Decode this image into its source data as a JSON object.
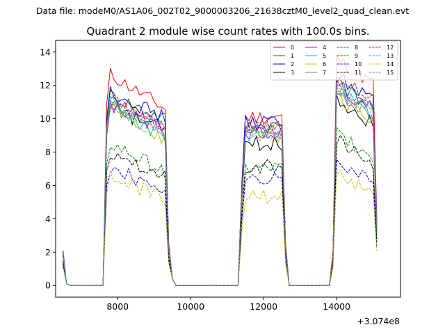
{
  "suptitle": "Data file: modeM0/AS1A06_002T02_9000003206_21638cztM0_level2_quad_clean.evt",
  "chart_data": {
    "type": "line",
    "title": "Quadrant 2 module wise count rates with 100.0s bins.",
    "xlabel": "",
    "ylabel": "",
    "x_offset_label": "+3.074e8",
    "xlim": [
      6300,
      15750
    ],
    "ylim": [
      -0.7,
      14.7
    ],
    "x_ticks": [
      8000,
      10000,
      12000,
      14000
    ],
    "x_tick_labels": [
      "8000",
      "10000",
      "12000",
      "14000"
    ],
    "y_ticks": [
      0,
      2,
      4,
      6,
      8,
      10,
      12,
      14
    ],
    "y_tick_labels": [
      "0",
      "2",
      "4",
      "6",
      "8",
      "10",
      "12",
      "14"
    ],
    "grid": false,
    "legend_position": "top-right",
    "legend_columns": 4,
    "segments": [
      {
        "start": 6500,
        "end": 6600,
        "low_x": [
          6700,
          7600
        ]
      },
      {
        "start": 7700,
        "end": 9400,
        "low_x": [
          9600,
          11300
        ]
      },
      {
        "start": 11400,
        "end": 12600,
        "low_x": [
          12800,
          13800
        ]
      },
      {
        "start": 13900,
        "end": 15100,
        "low_x": []
      }
    ],
    "series": [
      {
        "name": "0",
        "color": "#ff0000",
        "dash": "solid",
        "level": 12.8,
        "trend": -2.2,
        "level2": 10.1,
        "level3": 13.6,
        "start_val": 2.1
      },
      {
        "name": "1",
        "color": "#008000",
        "dash": "solid",
        "level": 11.5,
        "trend": -1.5,
        "level2": 9.6,
        "level3": 12.2,
        "start_val": 1.9
      },
      {
        "name": "2",
        "color": "#0000ff",
        "dash": "solid",
        "level": 11.8,
        "trend": -1.8,
        "level2": 9.8,
        "level3": 12.6,
        "start_val": 2.1
      },
      {
        "name": "3",
        "color": "#000000",
        "dash": "solid",
        "level": 10.6,
        "trend": -1.2,
        "level2": 8.5,
        "level3": 11.2,
        "start_val": 1.8
      },
      {
        "name": "4",
        "color": "#bf00bf",
        "dash": "solid",
        "level": 11.0,
        "trend": -1.8,
        "level2": 9.2,
        "level3": 12.0,
        "start_val": 1.9
      },
      {
        "name": "5",
        "color": "#00bfbf",
        "dash": "solid",
        "level": 11.2,
        "trend": -2.5,
        "level2": 9.4,
        "level3": 11.8,
        "start_val": 1.9
      },
      {
        "name": "6",
        "color": "#bfbf00",
        "dash": "solid",
        "level": 10.8,
        "trend": -2.0,
        "level2": 9.0,
        "level3": 11.4,
        "start_val": 1.8
      },
      {
        "name": "7",
        "color": "#808080",
        "dash": "solid",
        "level": 10.9,
        "trend": -1.6,
        "level2": 9.3,
        "level3": 11.6,
        "start_val": 1.9
      },
      {
        "name": "8",
        "color": "#ff0000",
        "dash": "dashed",
        "level": 11.4,
        "trend": -1.9,
        "level2": 9.5,
        "level3": 12.8,
        "start_val": 1.9
      },
      {
        "name": "9",
        "color": "#008000",
        "dash": "dashed",
        "level": 8.6,
        "trend": -1.8,
        "level2": 7.0,
        "level3": 9.2,
        "start_val": 1.5
      },
      {
        "name": "10",
        "color": "#0000ff",
        "dash": "dashed",
        "level": 7.1,
        "trend": -1.3,
        "level2": 6.3,
        "level3": 7.6,
        "start_val": 1.3
      },
      {
        "name": "11",
        "color": "#000000",
        "dash": "dashed",
        "level": 8.1,
        "trend": -1.5,
        "level2": 7.1,
        "level3": 8.8,
        "start_val": 1.4
      },
      {
        "name": "12",
        "color": "#bf00bf",
        "dash": "dashed",
        "level": 11.2,
        "trend": -1.6,
        "level2": 9.2,
        "level3": 12.1,
        "start_val": 1.9
      },
      {
        "name": "13",
        "color": "#00bfbf",
        "dash": "dashed",
        "level": 11.0,
        "trend": -1.7,
        "level2": 9.1,
        "level3": 12.2,
        "start_val": 1.9
      },
      {
        "name": "14",
        "color": "#bfbf00",
        "dash": "dashed",
        "level": 6.5,
        "trend": -1.2,
        "level2": 5.3,
        "level3": 6.9,
        "start_val": 1.1
      },
      {
        "name": "15",
        "color": "#808080",
        "dash": "dashed",
        "level": 10.7,
        "trend": -1.3,
        "level2": 9.0,
        "level3": 11.7,
        "start_val": 1.8
      }
    ]
  }
}
